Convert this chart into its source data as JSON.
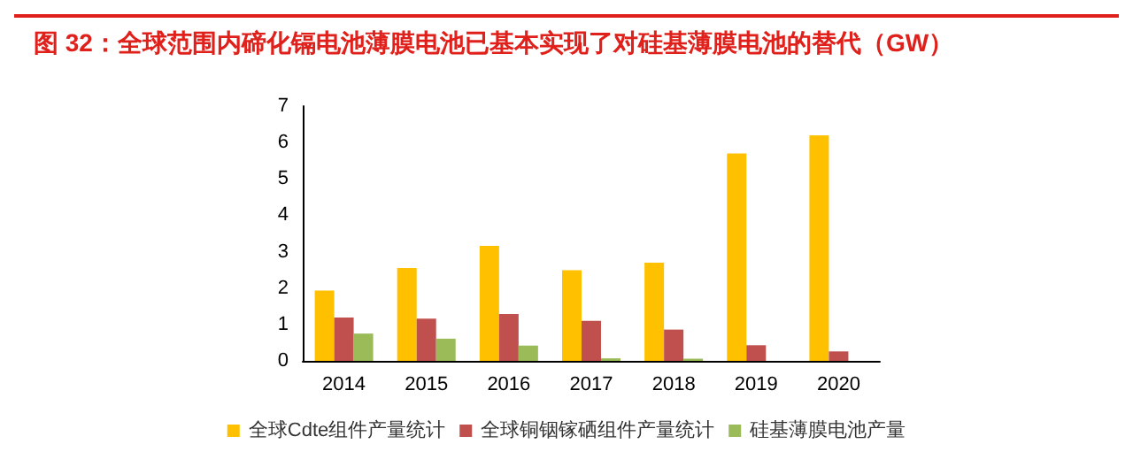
{
  "chart_data": {
    "type": "bar",
    "title": "图 32：全球范围内碲化镉电池薄膜电池已基本实现了对硅基薄膜电池的替代（GW）",
    "categories": [
      "2014",
      "2015",
      "2016",
      "2017",
      "2018",
      "2019",
      "2020"
    ],
    "series": [
      {
        "name": "全球Cdte组件产量统计",
        "color": "#ffc000",
        "values": [
          1.93,
          2.55,
          3.16,
          2.49,
          2.7,
          5.7,
          6.2
        ]
      },
      {
        "name": "全球铜铟镓硒组件产量统计",
        "color": "#c0504d",
        "values": [
          1.19,
          1.16,
          1.29,
          1.1,
          0.86,
          0.43,
          0.26
        ]
      },
      {
        "name": "硅基薄膜电池产量",
        "color": "#9bbb59",
        "values": [
          0.75,
          0.61,
          0.42,
          0.07,
          0.06,
          null,
          null
        ]
      }
    ],
    "ylim": [
      0,
      7
    ],
    "yticks": [
      0,
      1,
      2,
      3,
      4,
      5,
      6,
      7
    ],
    "grid": false,
    "legend": "bottom"
  }
}
